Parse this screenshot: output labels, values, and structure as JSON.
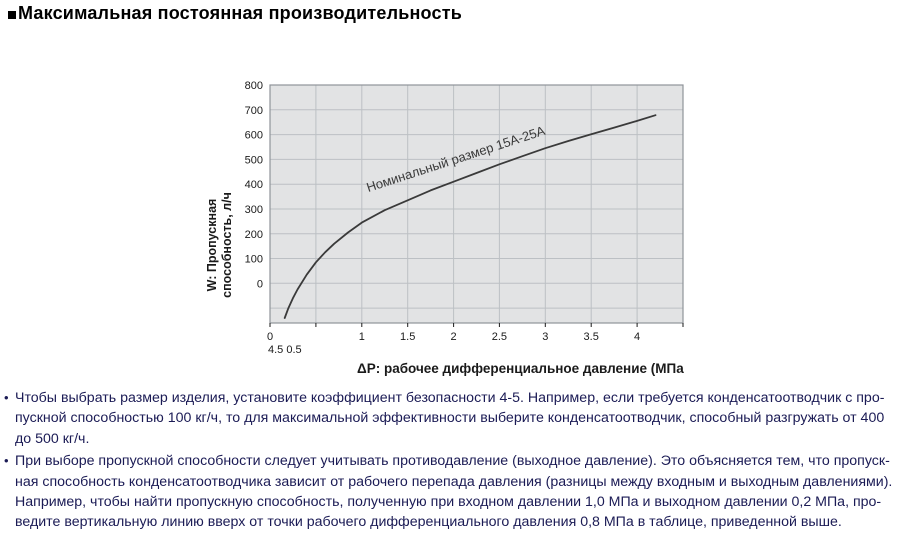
{
  "section": {
    "title": "Максимальная постоянная производительность"
  },
  "chart_data": {
    "type": "line",
    "title": "",
    "xlabel": "ΔP: рабочее дифференциальное давление (МПа",
    "ylabel": "W: Пропускная способность, л/ч",
    "ylabel_lines": [
      "W: Пропускная",
      "способность, л/ч"
    ],
    "xlim": [
      0,
      4.5
    ],
    "ylim": [
      -160,
      800
    ],
    "grid": true,
    "legend_position": "none",
    "y_ticks": [
      0,
      100,
      200,
      300,
      400,
      500,
      600,
      700,
      800
    ],
    "x_tick_values": [
      0,
      1,
      1.5,
      2,
      2.5,
      3,
      3.5,
      4
    ],
    "x_ticks_labeled": [
      "0",
      "1",
      "1.5",
      "2",
      "2.5",
      "3",
      "3.5",
      "4"
    ],
    "x_minor_step": 0.5,
    "stray_label": "4.5 0.5",
    "series": [
      {
        "name": "Номинальный размер 15А-25А",
        "points": [
          [
            0.16,
            -140
          ],
          [
            0.2,
            -100
          ],
          [
            0.25,
            -60
          ],
          [
            0.3,
            -25
          ],
          [
            0.4,
            35
          ],
          [
            0.5,
            85
          ],
          [
            0.6,
            125
          ],
          [
            0.7,
            160
          ],
          [
            0.85,
            205
          ],
          [
            1.0,
            245
          ],
          [
            1.25,
            295
          ],
          [
            1.5,
            335
          ],
          [
            1.75,
            375
          ],
          [
            2.0,
            410
          ],
          [
            2.25,
            445
          ],
          [
            2.5,
            480
          ],
          [
            2.75,
            513
          ],
          [
            3.0,
            545
          ],
          [
            3.25,
            574
          ],
          [
            3.5,
            601
          ],
          [
            3.75,
            628
          ],
          [
            4.0,
            655
          ],
          [
            4.2,
            678
          ]
        ]
      }
    ],
    "curve_label_pos": [
      1.07,
      368
    ],
    "curve_label_angle_deg": -18
  },
  "notes": [
    {
      "marker": "•",
      "lines": [
        "Чтобы выбрать размер изделия, установите коэффициент безопасности 4-5. Например, если требуется конденсатоотводчик с про-",
        "пускной способностью 100 кг/ч, то для максимальной эффективности выберите конденсатоотводчик, способный разгружать от 400",
        "до 500 кг/ч."
      ]
    },
    {
      "marker": "•",
      "lines": [
        "При выборе пропускной способности следует учитывать противодавление (выходное давление). Это объясняется тем, что пропуск-",
        "ная способность конденсатоотводчика зависит от рабочего перепада давления (разницы между входным и выходным давлениями).",
        "Например, чтобы найти пропускную способность, полученную при входном давлении 1,0 МПа и выходном давлении 0,2 МПа, про-",
        "ведите вертикальную линию вверх от точки рабочего дифференциального давления 0,8 МПа в таблице, приведенной выше."
      ]
    }
  ],
  "colors": {
    "body_text": "#1b1b55",
    "heading_text": "#000000",
    "chart_text": "#1a1a1a",
    "plot_bg": "#e2e3e4",
    "grid": "#bcc0c4",
    "frame": "#8f9499",
    "curve": "#3a3a3a"
  }
}
